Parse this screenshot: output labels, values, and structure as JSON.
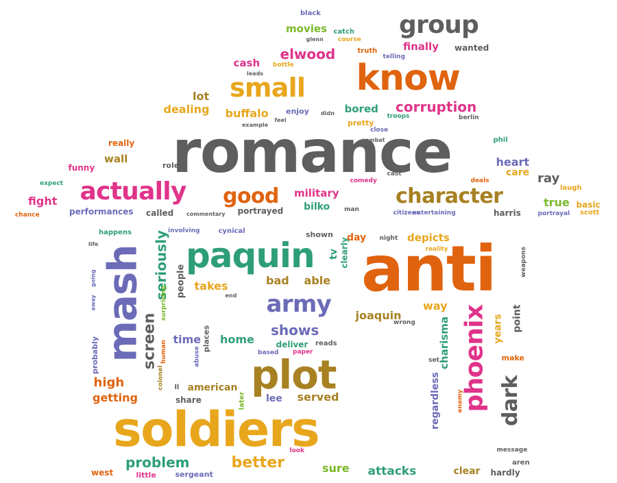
{
  "palette": {
    "gray": "#5e5e5e",
    "orange": "#e0630f",
    "gold": "#e8a61c",
    "magenta": "#e0338a",
    "green": "#2e9e77",
    "purple": "#6b6bb8",
    "olive": "#a78122",
    "lime": "#7ab82a",
    "brown": "#9a7a1a"
  },
  "words": [
    {
      "text": "romance",
      "color": "gray"
    },
    {
      "text": "know",
      "color": "orange"
    },
    {
      "text": "anti",
      "color": "orange"
    },
    {
      "text": "soldiers",
      "color": "gold"
    },
    {
      "text": "small",
      "color": "gold"
    },
    {
      "text": "group",
      "color": "gray"
    },
    {
      "text": "actually",
      "color": "magenta"
    },
    {
      "text": "character",
      "color": "olive"
    },
    {
      "text": "paquin",
      "color": "green"
    },
    {
      "text": "good",
      "color": "orange"
    },
    {
      "text": "plot",
      "color": "olive"
    },
    {
      "text": "mash",
      "color": "purple"
    },
    {
      "text": "phoenix",
      "color": "magenta"
    },
    {
      "text": "army",
      "color": "purple"
    },
    {
      "text": "dark",
      "color": "gray"
    },
    {
      "text": "problem",
      "color": "green"
    },
    {
      "text": "better",
      "color": "gold"
    },
    {
      "text": "screen",
      "color": "gray"
    },
    {
      "text": "corruption",
      "color": "magenta"
    },
    {
      "text": "elwood",
      "color": "magenta"
    },
    {
      "text": "finally",
      "color": "magenta"
    },
    {
      "text": "buffalo",
      "color": "gold"
    },
    {
      "text": "dealing",
      "color": "gold"
    },
    {
      "text": "bored",
      "color": "green"
    },
    {
      "text": "movies",
      "color": "lime"
    },
    {
      "text": "cash",
      "color": "magenta"
    },
    {
      "text": "lot",
      "color": "olive"
    },
    {
      "text": "black",
      "color": "purple"
    },
    {
      "text": "wanted",
      "color": "gray"
    },
    {
      "text": "catch",
      "color": "green"
    },
    {
      "text": "glenn",
      "color": "gray"
    },
    {
      "text": "course",
      "color": "gold"
    },
    {
      "text": "truth",
      "color": "orange"
    },
    {
      "text": "telling",
      "color": "purple"
    },
    {
      "text": "bottle",
      "color": "gold"
    },
    {
      "text": "leads",
      "color": "gray"
    },
    {
      "text": "enjoy",
      "color": "purple"
    },
    {
      "text": "didn",
      "color": "gray"
    },
    {
      "text": "pretty",
      "color": "gold"
    },
    {
      "text": "troops",
      "color": "green"
    },
    {
      "text": "berlin",
      "color": "gray"
    },
    {
      "text": "feel",
      "color": "gray"
    },
    {
      "text": "example",
      "color": "gray"
    },
    {
      "text": "close",
      "color": "purple"
    },
    {
      "text": "combat",
      "color": "gray"
    },
    {
      "text": "really",
      "color": "orange"
    },
    {
      "text": "wall",
      "color": "olive"
    },
    {
      "text": "funny",
      "color": "magenta"
    },
    {
      "text": "role",
      "color": "gray"
    },
    {
      "text": "phil",
      "color": "green"
    },
    {
      "text": "heart",
      "color": "purple"
    },
    {
      "text": "care",
      "color": "gold"
    },
    {
      "text": "ray",
      "color": "gray"
    },
    {
      "text": "laugh",
      "color": "gold"
    },
    {
      "text": "true",
      "color": "lime"
    },
    {
      "text": "basic",
      "color": "gold"
    },
    {
      "text": "scott",
      "color": "gold"
    },
    {
      "text": "portrayal",
      "color": "purple"
    },
    {
      "text": "harris",
      "color": "gray"
    },
    {
      "text": "expect",
      "color": "green"
    },
    {
      "text": "fight",
      "color": "magenta"
    },
    {
      "text": "chance",
      "color": "orange"
    },
    {
      "text": "performances",
      "color": "purple"
    },
    {
      "text": "called",
      "color": "gray"
    },
    {
      "text": "commentary",
      "color": "gray"
    },
    {
      "text": "portrayed",
      "color": "gray"
    },
    {
      "text": "military",
      "color": "magenta"
    },
    {
      "text": "bilko",
      "color": "green"
    },
    {
      "text": "man",
      "color": "gray"
    },
    {
      "text": "comedy",
      "color": "magenta"
    },
    {
      "text": "cast",
      "color": "gray"
    },
    {
      "text": "deals",
      "color": "orange"
    },
    {
      "text": "citizens",
      "color": "purple"
    },
    {
      "text": "entertaining",
      "color": "purple"
    },
    {
      "text": "happens",
      "color": "green"
    },
    {
      "text": "involving",
      "color": "purple"
    },
    {
      "text": "cynical",
      "color": "purple"
    },
    {
      "text": "shown",
      "color": "gray"
    },
    {
      "text": "day",
      "color": "orange"
    },
    {
      "text": "night",
      "color": "gray"
    },
    {
      "text": "depicts",
      "color": "gold"
    },
    {
      "text": "reality",
      "color": "gold"
    },
    {
      "text": "life",
      "color": "gray"
    },
    {
      "text": "seriously",
      "color": "green"
    },
    {
      "text": "tv",
      "color": "green"
    },
    {
      "text": "clearly",
      "color": "green"
    },
    {
      "text": "people",
      "color": "gray"
    },
    {
      "text": "takes",
      "color": "gold"
    },
    {
      "text": "end",
      "color": "gray"
    },
    {
      "text": "bad",
      "color": "olive"
    },
    {
      "text": "able",
      "color": "olive"
    },
    {
      "text": "way",
      "color": "gold"
    },
    {
      "text": "joaquin",
      "color": "olive"
    },
    {
      "text": "wrong",
      "color": "gray"
    },
    {
      "text": "away",
      "color": "purple"
    },
    {
      "text": "going",
      "color": "purple"
    },
    {
      "text": "surprising",
      "color": "lime"
    },
    {
      "text": "weapons",
      "color": "gray"
    },
    {
      "text": "point",
      "color": "gray"
    },
    {
      "text": "years",
      "color": "gold"
    },
    {
      "text": "charisma",
      "color": "green"
    },
    {
      "text": "regardless",
      "color": "purple"
    },
    {
      "text": "make",
      "color": "orange"
    },
    {
      "text": "set",
      "color": "gray"
    },
    {
      "text": "enemy",
      "color": "orange"
    },
    {
      "text": "time",
      "color": "purple"
    },
    {
      "text": "places",
      "color": "gray"
    },
    {
      "text": "home",
      "color": "green"
    },
    {
      "text": "shows",
      "color": "purple"
    },
    {
      "text": "deliver",
      "color": "green"
    },
    {
      "text": "reads",
      "color": "gray"
    },
    {
      "text": "paper",
      "color": "magenta"
    },
    {
      "text": "based",
      "color": "purple"
    },
    {
      "text": "human",
      "color": "orange"
    },
    {
      "text": "abuse",
      "color": "purple"
    },
    {
      "text": "probably",
      "color": "purple"
    },
    {
      "text": "high",
      "color": "orange"
    },
    {
      "text": "colonel",
      "color": "olive"
    },
    {
      "text": "getting",
      "color": "orange"
    },
    {
      "text": "ll",
      "color": "gray"
    },
    {
      "text": "american",
      "color": "olive"
    },
    {
      "text": "share",
      "color": "gray"
    },
    {
      "text": "later",
      "color": "lime"
    },
    {
      "text": "lee",
      "color": "purple"
    },
    {
      "text": "served",
      "color": "olive"
    },
    {
      "text": "look",
      "color": "magenta"
    },
    {
      "text": "message",
      "color": "gray"
    },
    {
      "text": "aren",
      "color": "gray"
    },
    {
      "text": "west",
      "color": "orange"
    },
    {
      "text": "little",
      "color": "magenta"
    },
    {
      "text": "sergeant",
      "color": "purple"
    },
    {
      "text": "sure",
      "color": "lime"
    },
    {
      "text": "attacks",
      "color": "green"
    },
    {
      "text": "clear",
      "color": "olive"
    },
    {
      "text": "hardly",
      "color": "gray"
    }
  ]
}
